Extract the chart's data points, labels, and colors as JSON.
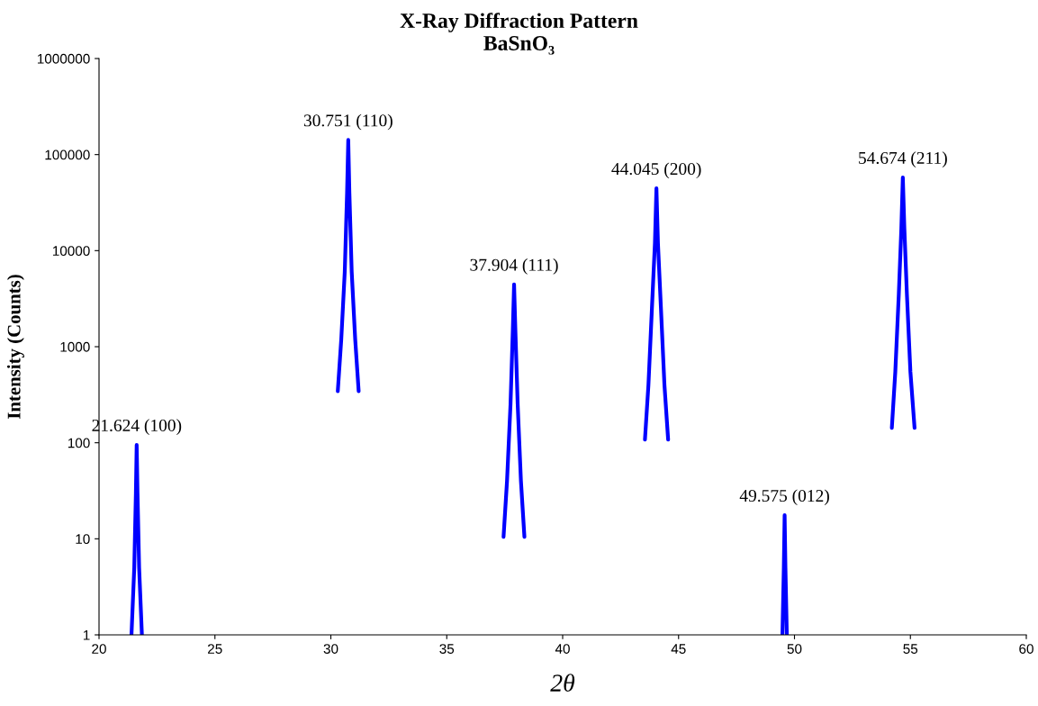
{
  "chart_data": {
    "type": "line",
    "title": "X-Ray Diffraction Pattern",
    "subtitle": "BaSnO₃",
    "xlabel": "2θ",
    "ylabel": "Intensity (Counts)",
    "log": "y",
    "xlim": [
      20,
      60
    ],
    "xticks": [
      20,
      25,
      30,
      35,
      40,
      45,
      50,
      55,
      60
    ],
    "ylim": [
      1,
      1000000
    ],
    "yticks": [
      1,
      10,
      100,
      1000,
      10000,
      100000,
      1000000
    ],
    "series": [
      {
        "color": "#0000ff",
        "x": [
          21.4,
          21.52,
          21.59,
          21.624,
          21.66,
          21.73,
          21.85
        ],
        "values": [
          1,
          5,
          30,
          95,
          30,
          5,
          1
        ]
      },
      {
        "color": "#0000ff",
        "x": [
          30.3,
          30.45,
          30.6,
          30.7,
          30.751,
          30.8,
          30.9,
          31.05,
          31.2
        ],
        "values": [
          345,
          1200,
          6000,
          40000,
          142000,
          40000,
          6000,
          1200,
          345
        ]
      },
      {
        "color": "#0000ff",
        "x": [
          37.45,
          37.6,
          37.75,
          37.85,
          37.904,
          37.96,
          38.06,
          38.2,
          38.35
        ],
        "values": [
          10.5,
          40,
          250,
          1500,
          4450,
          1500,
          250,
          40,
          10.5
        ]
      },
      {
        "color": "#0000ff",
        "x": [
          43.55,
          43.7,
          43.85,
          43.98,
          44.045,
          44.11,
          44.24,
          44.39,
          44.55
        ],
        "values": [
          108,
          400,
          2500,
          12000,
          44500,
          12000,
          2500,
          400,
          108
        ]
      },
      {
        "color": "#0000ff",
        "x": [
          49.48,
          49.54,
          49.575,
          49.61,
          49.67
        ],
        "values": [
          1,
          5,
          17.6,
          5,
          1
        ]
      },
      {
        "color": "#0000ff",
        "x": [
          54.2,
          54.35,
          54.5,
          54.61,
          54.674,
          54.74,
          54.85,
          55.0,
          55.18
        ],
        "values": [
          143,
          550,
          3500,
          17000,
          57800,
          17000,
          3500,
          550,
          143
        ]
      }
    ],
    "annotations": [
      {
        "text": "21.624 (100)",
        "x": 21.624,
        "y": 95
      },
      {
        "text": "30.751 (110)",
        "x": 30.751,
        "y": 142000
      },
      {
        "text": "37.904 (111)",
        "x": 37.904,
        "y": 4450
      },
      {
        "text": "44.045 (200)",
        "x": 44.045,
        "y": 44500
      },
      {
        "text": "49.575 (012)",
        "x": 49.575,
        "y": 17.6
      },
      {
        "text": "54.674 (211)",
        "x": 54.674,
        "y": 57800
      }
    ]
  }
}
